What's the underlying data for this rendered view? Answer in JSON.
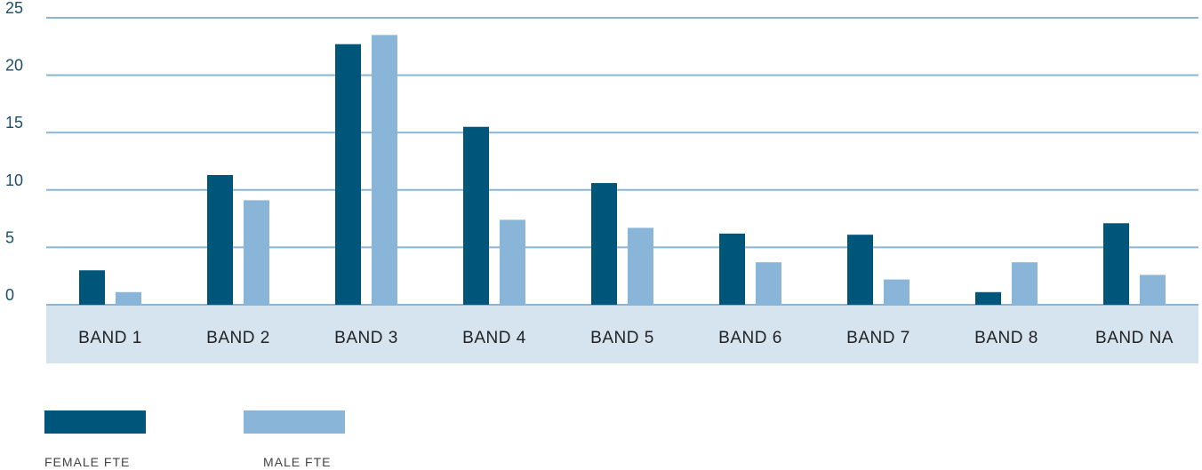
{
  "chart_data": {
    "type": "bar",
    "categories": [
      "BAND 1",
      "BAND 2",
      "BAND 3",
      "BAND 4",
      "BAND 5",
      "BAND 6",
      "BAND 7",
      "BAND 8",
      "BAND NA"
    ],
    "series": [
      {
        "name": "FEMALE FTE",
        "color": "#00557a",
        "values": [
          3.0,
          11.3,
          22.7,
          15.5,
          10.6,
          6.2,
          6.1,
          1.1,
          7.1
        ]
      },
      {
        "name": "MALE FTE",
        "color": "#88b5d8",
        "values": [
          1.1,
          9.1,
          23.5,
          7.4,
          6.7,
          3.7,
          2.2,
          3.7,
          2.6
        ]
      }
    ],
    "ylim": [
      0,
      25
    ],
    "yticks": [
      "0",
      "5",
      "10",
      "15",
      "20",
      "25"
    ],
    "grid": true,
    "legend_position": "bottom-left",
    "colors": {
      "gridline": "#88b5d8",
      "axis_band": "#d6e4f0"
    }
  }
}
